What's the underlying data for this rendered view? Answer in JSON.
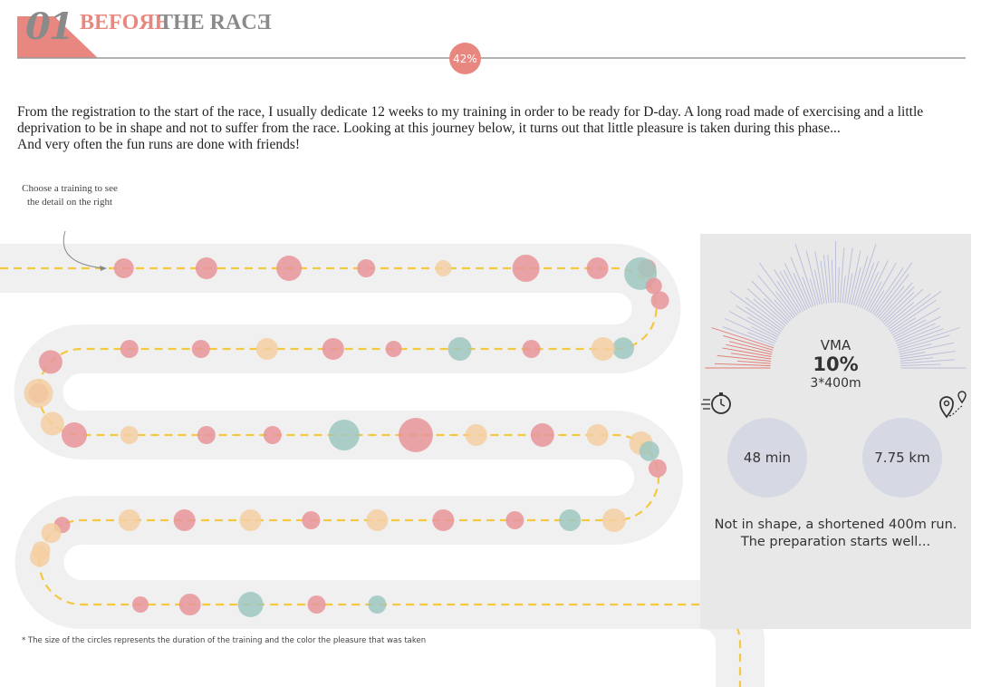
{
  "header": {
    "section_number": "01",
    "title_part1": "BEFOЯE",
    "title_part2": "THE RACƎ",
    "progress": "42%",
    "progress_value": 42
  },
  "intro": {
    "line1": "From the registration to the start of the race, I usually dedicate 12 weeks to my training in order to be ready for D-day. A long road made of exercising and a little deprivation to be in shape and not to suffer from the race. Looking at this journey below, it turns out that little pleasure is taken during this phase...",
    "line2": "And very often the fun runs are done with friends!"
  },
  "hint": "Choose a training to see the detail on the right",
  "footnote": "* The size of the circles represents the duration of the training and the color the pleasure that was taken",
  "colors": {
    "low_pleasure": "#e8959a",
    "medium_pleasure": "#f3cfa2",
    "high_pleasure": "#9fc7bf",
    "road": "#f0f0f0",
    "path_dash": "#f5c842",
    "accent": "#e8877f",
    "panel_bg": "#e8e8e8",
    "stat_bg": "#d6d8e3",
    "gauge_tick": "#b8bcd9",
    "gauge_active": "#e07a72"
  },
  "detail": {
    "vma_label": "VMA",
    "vma_value": "10%",
    "vma_fraction": 0.1,
    "session": "3*400m",
    "duration": "48 min",
    "distance": "7.75 km",
    "comment_line1": "Not in shape, a shortened 400m run.",
    "comment_line2": "The preparation starts well...",
    "duration_icon": "stopwatch-icon",
    "distance_icon": "map-pin-icon"
  },
  "chart_data": {
    "type": "scatter",
    "encoding": "circle size = training duration, circle color = pleasure taken",
    "trainings": [
      {
        "lane": 1,
        "pos": 0.09,
        "size": 11,
        "pleasure": "low"
      },
      {
        "lane": 1,
        "pos": 0.24,
        "size": 12,
        "pleasure": "low"
      },
      {
        "lane": 1,
        "pos": 0.39,
        "size": 14,
        "pleasure": "low"
      },
      {
        "lane": 1,
        "pos": 0.53,
        "size": 10,
        "pleasure": "low"
      },
      {
        "lane": 1,
        "pos": 0.67,
        "size": 9,
        "pleasure": "medium"
      },
      {
        "lane": 1,
        "pos": 0.82,
        "size": 15,
        "pleasure": "low"
      },
      {
        "lane": 1,
        "pos": 0.95,
        "size": 12,
        "pleasure": "low"
      },
      {
        "lane": 1,
        "pos": 1.04,
        "size": 10,
        "pleasure": "low"
      },
      {
        "lane": 1,
        "pos": 1.13,
        "size": 18,
        "pleasure": "high"
      },
      {
        "lane": 1,
        "pos": 1.2,
        "size": 9,
        "pleasure": "low"
      },
      {
        "lane": 1,
        "pos": 1.26,
        "size": 10,
        "pleasure": "low"
      },
      {
        "lane": 2,
        "pos": 1.0,
        "size": 12,
        "pleasure": "high"
      },
      {
        "lane": 2,
        "pos": 0.96,
        "size": 13,
        "pleasure": "medium"
      },
      {
        "lane": 2,
        "pos": 0.83,
        "size": 10,
        "pleasure": "low"
      },
      {
        "lane": 2,
        "pos": 0.7,
        "size": 13,
        "pleasure": "high"
      },
      {
        "lane": 2,
        "pos": 0.58,
        "size": 9,
        "pleasure": "low"
      },
      {
        "lane": 2,
        "pos": 0.47,
        "size": 12,
        "pleasure": "low"
      },
      {
        "lane": 2,
        "pos": 0.35,
        "size": 12,
        "pleasure": "medium"
      },
      {
        "lane": 2,
        "pos": 0.23,
        "size": 10,
        "pleasure": "low"
      },
      {
        "lane": 2,
        "pos": 0.1,
        "size": 10,
        "pleasure": "low"
      },
      {
        "lane": 2,
        "pos": 0.0,
        "size": 13,
        "pleasure": "low"
      },
      {
        "lane": 2,
        "pos": -0.05,
        "size": 11,
        "pleasure": "low"
      },
      {
        "lane": 2,
        "pos": -0.1,
        "size": 13,
        "pleasure": "medium"
      },
      {
        "lane": 2,
        "pos": -0.05,
        "size": 16,
        "pleasure": "medium"
      },
      {
        "lane": 3,
        "pos": 0.0,
        "size": 14,
        "pleasure": "low"
      },
      {
        "lane": 3,
        "pos": 0.1,
        "size": 10,
        "pleasure": "medium"
      },
      {
        "lane": 3,
        "pos": 0.24,
        "size": 10,
        "pleasure": "low"
      },
      {
        "lane": 3,
        "pos": 0.36,
        "size": 10,
        "pleasure": "low"
      },
      {
        "lane": 3,
        "pos": 0.49,
        "size": 17,
        "pleasure": "high"
      },
      {
        "lane": 3,
        "pos": 0.62,
        "size": 19,
        "pleasure": "low"
      },
      {
        "lane": 3,
        "pos": 0.73,
        "size": 12,
        "pleasure": "medium"
      },
      {
        "lane": 3,
        "pos": 0.85,
        "size": 13,
        "pleasure": "low"
      },
      {
        "lane": 3,
        "pos": 0.95,
        "size": 12,
        "pleasure": "medium"
      },
      {
        "lane": 3,
        "pos": 1.02,
        "size": 13,
        "pleasure": "medium"
      },
      {
        "lane": 3,
        "pos": 1.1,
        "size": 10,
        "pleasure": "low"
      },
      {
        "lane": 3,
        "pos": 1.05,
        "size": 11,
        "pleasure": "high"
      },
      {
        "lane": 4,
        "pos": 0.98,
        "size": 13,
        "pleasure": "medium"
      },
      {
        "lane": 4,
        "pos": 0.9,
        "size": 12,
        "pleasure": "high"
      },
      {
        "lane": 4,
        "pos": 0.8,
        "size": 10,
        "pleasure": "low"
      },
      {
        "lane": 4,
        "pos": 0.67,
        "size": 12,
        "pleasure": "low"
      },
      {
        "lane": 4,
        "pos": 0.55,
        "size": 12,
        "pleasure": "medium"
      },
      {
        "lane": 4,
        "pos": 0.43,
        "size": 10,
        "pleasure": "low"
      },
      {
        "lane": 4,
        "pos": 0.32,
        "size": 12,
        "pleasure": "medium"
      },
      {
        "lane": 4,
        "pos": 0.2,
        "size": 12,
        "pleasure": "low"
      },
      {
        "lane": 4,
        "pos": 0.1,
        "size": 12,
        "pleasure": "medium"
      },
      {
        "lane": 4,
        "pos": 0.02,
        "size": 9,
        "pleasure": "low"
      },
      {
        "lane": 4,
        "pos": -0.03,
        "size": 10,
        "pleasure": "medium"
      },
      {
        "lane": 4,
        "pos": -0.04,
        "size": 11,
        "pleasure": "medium"
      },
      {
        "lane": 4,
        "pos": 0.0,
        "size": 11,
        "pleasure": "medium"
      },
      {
        "lane": 5,
        "pos": 0.12,
        "size": 9,
        "pleasure": "low"
      },
      {
        "lane": 5,
        "pos": 0.21,
        "size": 12,
        "pleasure": "low"
      },
      {
        "lane": 5,
        "pos": 0.32,
        "size": 14,
        "pleasure": "high"
      },
      {
        "lane": 5,
        "pos": 0.44,
        "size": 10,
        "pleasure": "low"
      },
      {
        "lane": 5,
        "pos": 0.55,
        "size": 10,
        "pleasure": "high"
      }
    ]
  }
}
